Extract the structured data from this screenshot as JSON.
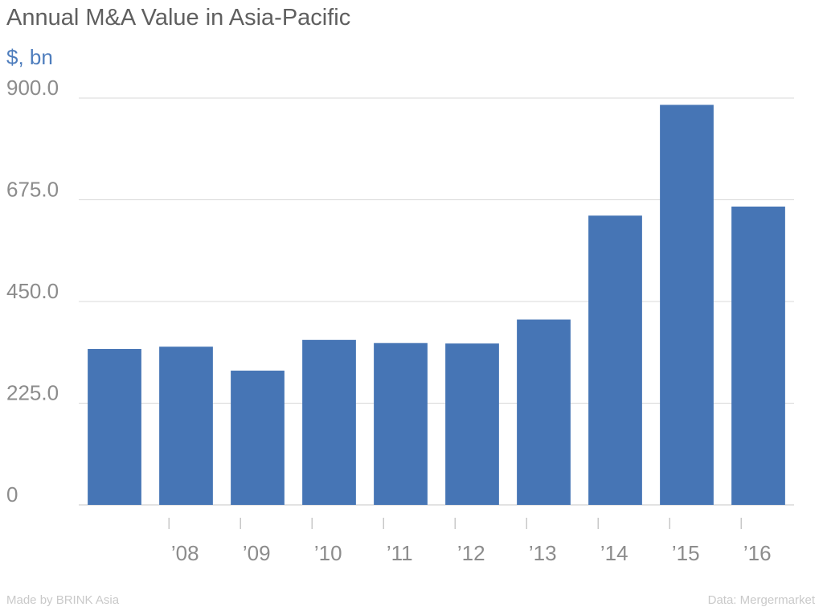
{
  "chart_data": {
    "type": "bar",
    "title": "Annual M&A Value in Asia-Pacific",
    "subtitle": "$, bn",
    "categories": [
      "",
      "'08",
      "'09",
      "'10",
      "'11",
      "'12",
      "'13",
      "'14",
      "'15",
      "'16"
    ],
    "values": [
      345,
      350,
      297,
      365,
      358,
      357,
      410,
      640,
      885,
      660
    ],
    "ylim": [
      0,
      900
    ],
    "yticks": [
      "0",
      "225.0",
      "450.0",
      "675.0",
      "900.0"
    ],
    "grid": true,
    "bar_color": "#4675b5"
  },
  "footer": {
    "credit": "Made by BRINK Asia",
    "source": "Data: Mergermarket"
  },
  "colors": {
    "title": "#5f5f5f",
    "subtitle": "#4e7dbd",
    "gridline": "#d9d9d9"
  }
}
